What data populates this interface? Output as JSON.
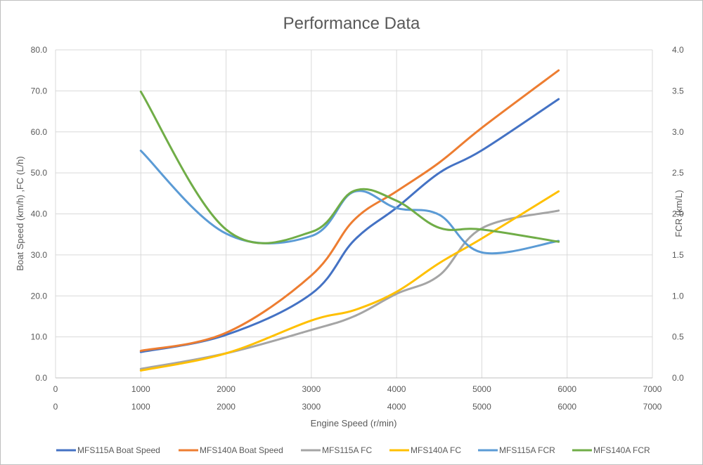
{
  "chart_data": {
    "type": "line",
    "title": "Performance Data",
    "xlabel": "Engine Speed (r/min)",
    "ylabel": "Boat Speed (km/h) ,FC (L/h)",
    "y2label": "FCR (km/L)",
    "xlim": [
      0,
      7000
    ],
    "ylim": [
      0,
      80
    ],
    "y2lim": [
      0,
      4
    ],
    "x_ticks": [
      "0",
      "1000",
      "2000",
      "3000",
      "4000",
      "5000",
      "6000",
      "7000"
    ],
    "y_ticks": [
      "0.0",
      "10.0",
      "20.0",
      "30.0",
      "40.0",
      "50.0",
      "60.0",
      "70.0",
      "80.0"
    ],
    "y2_ticks": [
      "0.0",
      "0.5",
      "1.0",
      "1.5",
      "2.0",
      "2.5",
      "3.0",
      "3.5",
      "4.0"
    ],
    "grid": true,
    "legend": "bottom",
    "series": [
      {
        "name": "MFS115A Boat Speed",
        "color": "#4472c4",
        "axis": "left",
        "x": [
          1000,
          2000,
          3000,
          3500,
          4000,
          4500,
          5000,
          5900
        ],
        "y": [
          6.3,
          10.5,
          20.5,
          33.5,
          41.5,
          50.0,
          55.5,
          68.0
        ]
      },
      {
        "name": "MFS140A Boat Speed",
        "color": "#ed7d31",
        "axis": "left",
        "x": [
          1000,
          2000,
          3000,
          3500,
          4000,
          4500,
          5000,
          5900
        ],
        "y": [
          6.6,
          11.0,
          25.0,
          38.5,
          45.5,
          52.5,
          61.0,
          75.0
        ]
      },
      {
        "name": "MFS115A FC",
        "color": "#a5a5a5",
        "axis": "left",
        "x": [
          1000,
          2000,
          3000,
          3500,
          4000,
          4500,
          5000,
          5900
        ],
        "y": [
          2.2,
          6.0,
          11.7,
          15.0,
          20.5,
          25.0,
          36.5,
          40.8
        ]
      },
      {
        "name": "MFS140A FC",
        "color": "#ffc000",
        "axis": "left",
        "x": [
          1000,
          2000,
          3000,
          3500,
          4000,
          4500,
          5000,
          5900
        ],
        "y": [
          1.8,
          6.0,
          14.0,
          16.5,
          21.0,
          28.0,
          34.0,
          45.5
        ]
      },
      {
        "name": "MFS115A FCR",
        "color": "#5b9bd5",
        "axis": "right",
        "x": [
          1000,
          2000,
          3000,
          3500,
          4000,
          4500,
          5000,
          5900
        ],
        "y": [
          2.77,
          1.76,
          1.73,
          2.27,
          2.07,
          1.99,
          1.53,
          1.67
        ]
      },
      {
        "name": "MFS140A FCR",
        "color": "#70ad47",
        "axis": "right",
        "x": [
          1000,
          2000,
          3000,
          3500,
          4000,
          4500,
          5000,
          5900
        ],
        "y": [
          3.49,
          1.81,
          1.78,
          2.28,
          2.16,
          1.83,
          1.81,
          1.66
        ]
      }
    ]
  }
}
